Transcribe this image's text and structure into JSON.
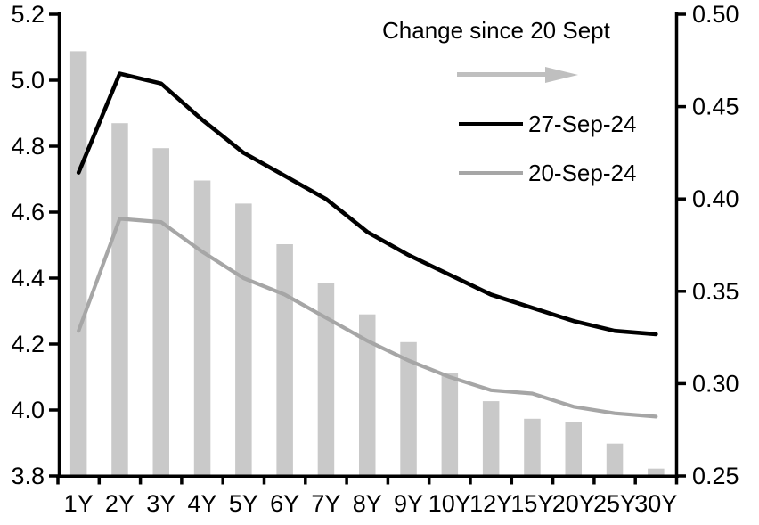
{
  "chart_data": {
    "type": "bar",
    "subtype": "bar-line-combo",
    "categories": [
      "1Y",
      "2Y",
      "3Y",
      "4Y",
      "5Y",
      "6Y",
      "7Y",
      "8Y",
      "9Y",
      "10Y",
      "12Y",
      "15Y",
      "20Y",
      "25Y",
      "30Y"
    ],
    "series": [
      {
        "name": "Change since 20 Sept",
        "type": "bar",
        "axis": "right",
        "color": "#c9c9c9",
        "values": [
          0.48,
          0.441,
          0.4275,
          0.41,
          0.3975,
          0.3755,
          0.3545,
          0.3375,
          0.3225,
          0.3055,
          0.2905,
          0.281,
          0.279,
          0.2675,
          0.254
        ]
      },
      {
        "name": "27-Sep-24",
        "type": "line",
        "axis": "left",
        "color": "#000000",
        "values": [
          4.72,
          5.02,
          4.99,
          4.88,
          4.78,
          4.71,
          4.64,
          4.54,
          4.47,
          4.41,
          4.35,
          4.31,
          4.27,
          4.24,
          4.23
        ]
      },
      {
        "name": "20-Sep-24",
        "type": "line",
        "axis": "left",
        "color": "#a6a6a6",
        "values": [
          4.24,
          4.58,
          4.57,
          4.48,
          4.4,
          4.35,
          4.28,
          4.21,
          4.15,
          4.1,
          4.06,
          4.05,
          4.01,
          3.99,
          3.98
        ]
      }
    ],
    "left_axis": {
      "min": 3.8,
      "max": 5.2,
      "tick_step": 0.2,
      "ticks": [
        "5.2",
        "5.0",
        "4.8",
        "4.6",
        "4.4",
        "4.2",
        "4.0",
        "3.8"
      ]
    },
    "right_axis": {
      "min": 0.25,
      "max": 0.5,
      "tick_step": 0.05,
      "ticks": [
        "0.50",
        "0.45",
        "0.40",
        "0.35",
        "0.30",
        "0.25"
      ]
    },
    "legend": {
      "bar_label": "Change since 20 Sept",
      "line1_label": "27-Sep-24",
      "line2_label": "20-Sep-24",
      "arrow_color": "#bfbfbf"
    },
    "grid": "off",
    "legend_position": "top-right-inside",
    "colors": {
      "bar": "#c9c9c9",
      "line_27sep": "#000000",
      "line_20sep": "#a6a6a6",
      "axis": "#000000",
      "background": "#ffffff"
    }
  }
}
